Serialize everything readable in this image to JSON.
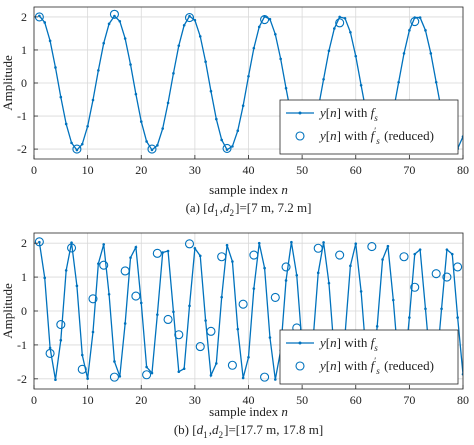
{
  "chart_data": [
    {
      "type": "line",
      "caption": "(a) [d1,d2]=[7 m, 7.2 m]",
      "xlabel": "sample index n",
      "ylabel": "Amplitude",
      "xlim": [
        0,
        80
      ],
      "ylim": [
        -2.3,
        2.3
      ],
      "xticks": [
        0,
        10,
        20,
        30,
        40,
        50,
        60,
        70,
        80
      ],
      "yticks": [
        -2,
        -1,
        0,
        1,
        2
      ],
      "grid": true,
      "legend_position": "bottom-right",
      "signal": {
        "amplitude": 2.03,
        "period_samples": 14.1,
        "first_peak_n": 1
      },
      "series": [
        {
          "name": "y[n] with f_s",
          "style": "line with dot markers",
          "x_range": [
            1,
            80
          ],
          "x_step": 1
        },
        {
          "name": "y[n] with f_s' (reduced)",
          "style": "circle markers",
          "x": [
            1,
            8,
            15,
            22,
            29,
            36,
            43,
            50,
            57,
            64,
            71,
            78
          ],
          "y": [
            2.0,
            -2.0,
            2.08,
            -2.0,
            1.98,
            -1.98,
            1.92,
            -1.9,
            1.82,
            -1.85,
            1.86,
            -1.8
          ]
        }
      ]
    },
    {
      "type": "line",
      "caption": "(b) [d1,d2]=[17.7 m, 17.8 m]",
      "xlabel": "sample index n",
      "ylabel": "Amplitude",
      "xlim": [
        0,
        80
      ],
      "ylim": [
        -2.3,
        2.3
      ],
      "xticks": [
        0,
        10,
        20,
        30,
        40,
        50,
        60,
        70,
        80
      ],
      "yticks": [
        -2,
        -1,
        0,
        1,
        2
      ],
      "grid": true,
      "legend_position": "bottom-right",
      "signal": {
        "amplitude": 2.03,
        "period_samples": 5.88,
        "first_peak_n": 1
      },
      "series": [
        {
          "name": "y[n] with f_s",
          "style": "line with dot markers",
          "x_range": [
            1,
            80
          ],
          "x_step": 1
        },
        {
          "name": "y[n] with f_s' (reduced)",
          "style": "circle markers",
          "x": [
            1,
            3,
            5,
            7,
            9,
            11,
            13,
            15,
            17,
            19,
            21,
            23,
            25,
            27,
            29,
            31,
            33,
            35,
            37,
            39,
            41,
            43,
            45,
            47,
            49,
            51,
            53,
            55,
            57,
            59,
            61,
            63,
            65,
            67,
            69,
            71,
            73,
            75,
            77,
            79
          ],
          "y": [
            2.04,
            -1.25,
            -0.4,
            1.86,
            -1.72,
            0.36,
            1.35,
            -1.95,
            1.18,
            0.44,
            -1.88,
            1.7,
            -0.25,
            -0.7,
            1.98,
            -1.05,
            -0.6,
            1.6,
            -1.6,
            0.2,
            1.65,
            -1.95,
            0.4,
            1.3,
            -0.5,
            -1.3,
            1.85,
            -0.9,
            1.65,
            -0.9,
            -1.2,
            1.9,
            -1.05,
            -0.75,
            1.6,
            0.7,
            -1.65,
            1.1,
            1.0,
            1.3
          ]
        }
      ]
    }
  ]
}
